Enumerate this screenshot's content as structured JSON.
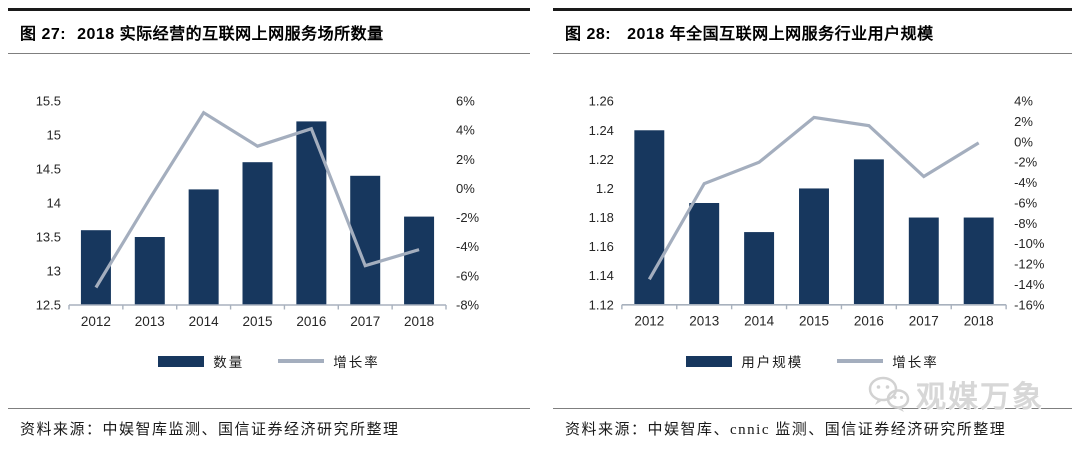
{
  "panels": [
    {
      "header": {
        "label": "图 27:",
        "title": "2018 实际经营的互联网上网服务场所数量"
      },
      "legend": [
        {
          "label": "数量",
          "swatch": "bar"
        },
        {
          "label": "增长率",
          "swatch": "line"
        }
      ],
      "source": "资料来源：中娱智库监测、国信证券经济研究所整理"
    },
    {
      "header": {
        "label": "图 28:",
        "title": "2018 年全国互联网上网服务行业用户规模"
      },
      "legend": [
        {
          "label": "用户规模",
          "swatch": "bar"
        },
        {
          "label": "增长率",
          "swatch": "line"
        }
      ],
      "source": "资料来源：中娱智库、cnnic 监测、国信证券经济研究所整理"
    }
  ],
  "chart_data": [
    {
      "type": "bar+line",
      "title": "2018 实际经营的互联网上网服务场所数量",
      "categories": [
        "2012",
        "2013",
        "2014",
        "2015",
        "2016",
        "2017",
        "2018"
      ],
      "series": [
        {
          "name": "数量",
          "type": "bar",
          "axis": "left",
          "values": [
            13.6,
            13.5,
            14.2,
            14.6,
            15.2,
            14.4,
            13.8
          ]
        },
        {
          "name": "增长率",
          "type": "line",
          "axis": "right",
          "unit": "%",
          "values": [
            -6.8,
            -0.7,
            5.2,
            2.9,
            4.1,
            -5.3,
            -4.2
          ]
        }
      ],
      "left_axis": {
        "min": 12.5,
        "max": 15.5,
        "tick_labels": [
          "15.5",
          "15",
          "14.5",
          "14",
          "13.5",
          "13",
          "12.5"
        ]
      },
      "right_axis": {
        "min": -8,
        "max": 6,
        "tick_labels": [
          "6%",
          "4%",
          "2%",
          "0%",
          "-2%",
          "-4%",
          "-6%",
          "-8%"
        ]
      },
      "grid": false,
      "legend_position": "bottom"
    },
    {
      "type": "bar+line",
      "title": "2018 年全国互联网上网服务行业用户规模",
      "categories": [
        "2012",
        "2013",
        "2014",
        "2015",
        "2016",
        "2017",
        "2018"
      ],
      "series": [
        {
          "name": "用户规模",
          "type": "bar",
          "axis": "left",
          "values": [
            1.24,
            1.19,
            1.17,
            1.2,
            1.22,
            1.18,
            1.18
          ]
        },
        {
          "name": "增长率",
          "type": "line",
          "axis": "right",
          "unit": "%",
          "values": [
            -13.5,
            -4.1,
            -2.0,
            2.4,
            1.6,
            -3.4,
            -0.1
          ]
        }
      ],
      "left_axis": {
        "min": 1.12,
        "max": 1.26,
        "tick_labels": [
          "1.26",
          "1.24",
          "1.22",
          "1.2",
          "1.18",
          "1.16",
          "1.14",
          "1.12"
        ]
      },
      "right_axis": {
        "min": -16,
        "max": 4,
        "tick_labels": [
          "4%",
          "2%",
          "0%",
          "-2%",
          "-4%",
          "-6%",
          "-8%",
          "-10%",
          "-12%",
          "-14%",
          "-16%"
        ]
      },
      "grid": false,
      "legend_position": "bottom"
    }
  ],
  "watermark": {
    "text": "观媒万象",
    "icon": "wechat-chat-bubbles-icon"
  },
  "colors": {
    "bar": "#17375e",
    "line": "#a4aebe",
    "axis": "#a8b1bd",
    "rule_dark": "#1a1a1a",
    "rule_light": "#7f7f7f",
    "watermark": "#d7d7d7"
  }
}
